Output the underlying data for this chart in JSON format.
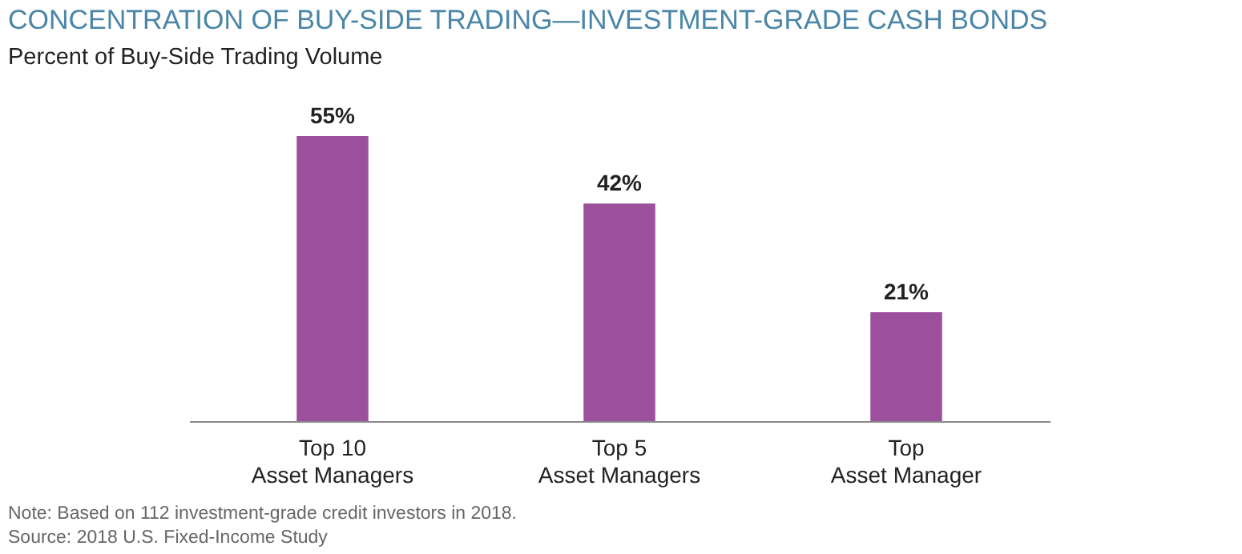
{
  "chart_data": {
    "type": "bar",
    "title": "CONCENTRATION OF BUY-SIDE TRADING—INVESTMENT-GRADE CASH BONDS",
    "subtitle": "Percent of Buy-Side Trading Volume",
    "categories": [
      "Top 10\nAsset Managers",
      "Top 5\nAsset Managers",
      "Top\nAsset Manager"
    ],
    "values": [
      55,
      42,
      21
    ],
    "value_labels": [
      "55%",
      "42%",
      "21%"
    ],
    "color": "#9c4f9c",
    "annotations": [
      "Note: Based on 112 investment-grade credit investors in 2018.",
      "Source: 2018 U.S. Fixed-Income Study"
    ]
  }
}
